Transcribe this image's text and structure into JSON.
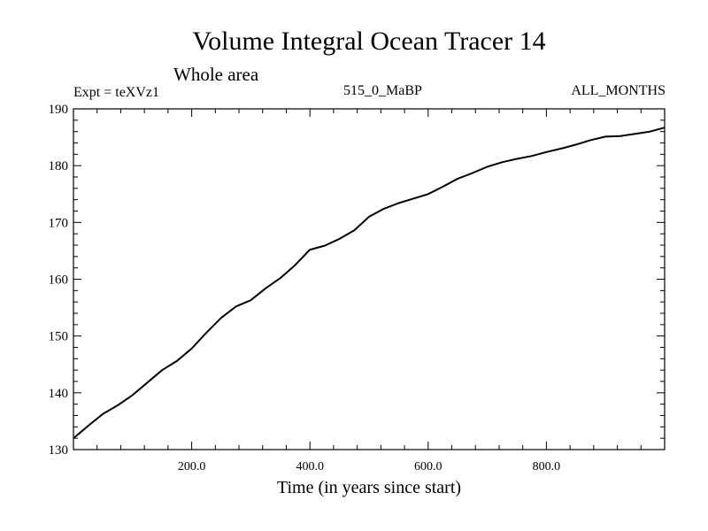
{
  "header": {
    "title": "Volume Integral Ocean Tracer 14",
    "subtitle": "Whole area",
    "expt": "Expt = teXVz1",
    "run": "515_0_MaBP",
    "months": "ALL_MONTHS"
  },
  "chart_data": {
    "type": "line",
    "title": "Volume Integral Ocean Tracer 14",
    "subtitle": "Whole area",
    "xlabel": "Time (in years since start)",
    "ylabel": "",
    "xlim": [
      0,
      1000
    ],
    "ylim": [
      130,
      190
    ],
    "x_ticks": [
      200,
      400,
      600,
      800
    ],
    "x_tick_labels": [
      "200.0",
      "400.0",
      "600.0",
      "800.0"
    ],
    "y_ticks": [
      130,
      140,
      150,
      160,
      170,
      180,
      190
    ],
    "y_tick_labels": [
      "130",
      "140",
      "150",
      "160",
      "170",
      "180",
      "190"
    ],
    "grid": false,
    "series": [
      {
        "name": "Tracer 14",
        "x": [
          0,
          25,
          50,
          75,
          100,
          125,
          150,
          175,
          200,
          225,
          250,
          275,
          300,
          325,
          350,
          375,
          400,
          425,
          450,
          475,
          500,
          525,
          550,
          575,
          600,
          625,
          650,
          675,
          700,
          725,
          750,
          775,
          800,
          825,
          850,
          875,
          900,
          925,
          950,
          975,
          1000
        ],
        "values": [
          132.0,
          134.2,
          136.3,
          137.8,
          139.6,
          141.8,
          144.0,
          145.6,
          147.8,
          150.6,
          153.2,
          155.2,
          156.3,
          158.4,
          160.2,
          162.5,
          165.2,
          165.9,
          167.1,
          168.6,
          171.0,
          172.4,
          173.4,
          174.2,
          175.0,
          176.3,
          177.7,
          178.7,
          179.8,
          180.6,
          181.2,
          181.7,
          182.4,
          183.0,
          183.7,
          184.5,
          185.1,
          185.2,
          185.6,
          186.0,
          186.7
        ]
      }
    ]
  }
}
